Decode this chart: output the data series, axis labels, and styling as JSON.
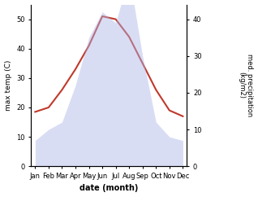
{
  "months": [
    "Jan",
    "Feb",
    "Mar",
    "Apr",
    "May",
    "Jun",
    "Jul",
    "Aug",
    "Sep",
    "Oct",
    "Nov",
    "Dec"
  ],
  "temp_data": [
    18.5,
    20,
    26,
    33,
    41,
    51,
    50,
    44,
    35,
    26,
    19,
    17
  ],
  "precip_data": [
    7,
    10,
    12,
    22,
    35,
    42,
    39,
    52,
    30,
    12,
    8,
    7
  ],
  "temp_color": "#c0392b",
  "precip_color": "#aab4e8",
  "temp_ylim": [
    0,
    55
  ],
  "precip_ylim": [
    0,
    44
  ],
  "temp_yticks": [
    0,
    10,
    20,
    30,
    40,
    50
  ],
  "precip_yticks": [
    0,
    10,
    20,
    30,
    40
  ],
  "xlabel": "date (month)",
  "ylabel_left": "max temp (C)",
  "ylabel_right": "med. precipitation\n(kg/m2)",
  "background_color": "#ffffff"
}
